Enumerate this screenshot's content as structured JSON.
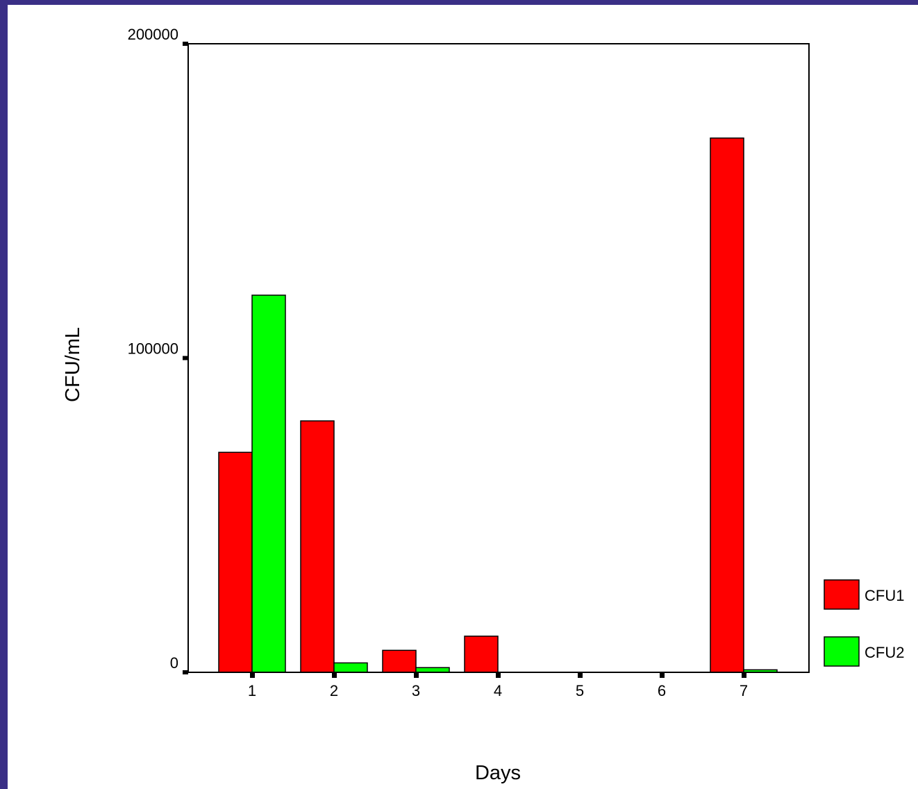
{
  "chart_data": {
    "type": "bar",
    "title": "",
    "xlabel": "Days",
    "ylabel": "CFU/mL",
    "categories": [
      "1",
      "2",
      "3",
      "4",
      "5",
      "6",
      "7"
    ],
    "series": [
      {
        "name": "CFU1",
        "color": "#ff0000",
        "values": [
          70000,
          80000,
          7000,
          11500,
          0,
          0,
          170000
        ]
      },
      {
        "name": "CFU2",
        "color": "#00ff00",
        "values": [
          120000,
          3000,
          1500,
          0,
          0,
          0,
          800
        ]
      }
    ],
    "ylim": [
      0,
      200000
    ],
    "yticks": [
      "0",
      "100000",
      "200000"
    ],
    "grid": false,
    "legend": "right"
  }
}
